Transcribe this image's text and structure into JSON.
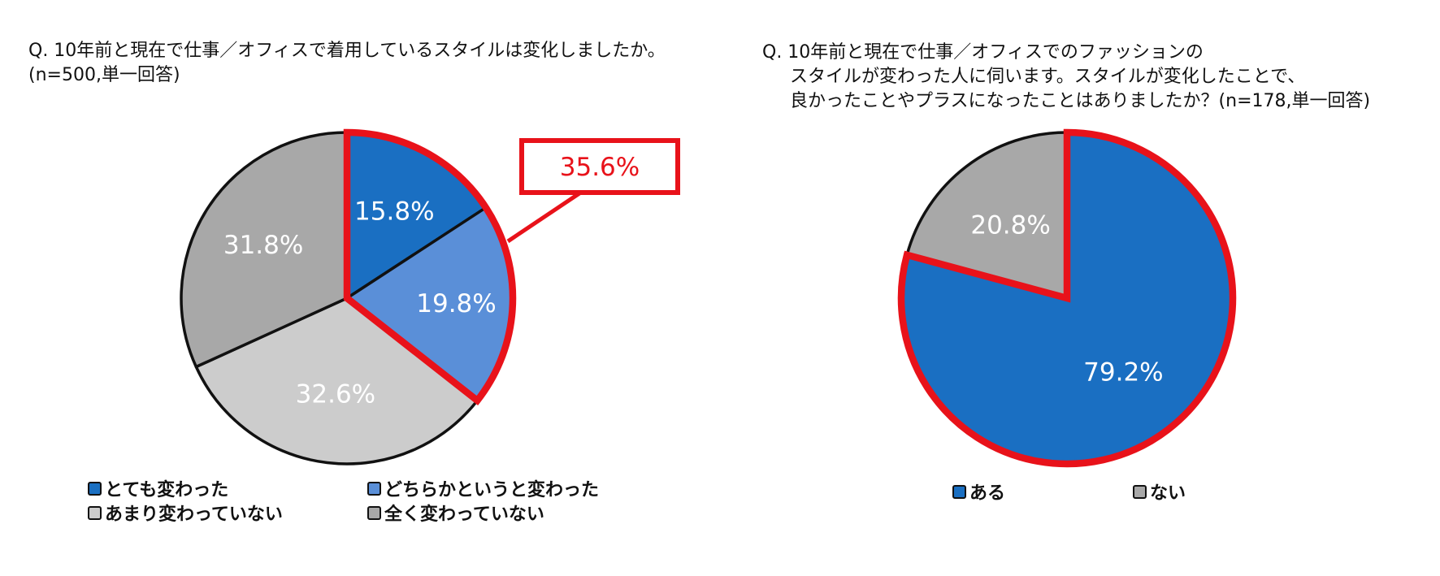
{
  "charts": {
    "left": {
      "question": "Q. 10年前と現在で仕事／オフィスで着用しているスタイルは変化しましたか。",
      "sample": "(n=500,単一回答)",
      "callout": {
        "label": "35.6%",
        "color": "#e8121a"
      }
    },
    "right": {
      "question_lines": [
        "Q. 10年前と現在で仕事／オフィスでのファッションの",
        "スタイルが変わった人に伺います。スタイルが変化したことで、",
        "良かったことやプラスになったことはありましたか？(n=178,単一回答)"
      ]
    }
  },
  "chart_data": [
    {
      "type": "pie",
      "title": "Q. 10年前と現在で仕事／オフィスで着用しているスタイルは変化しましたか。",
      "subtitle": "(n=500,単一回答)",
      "slices": [
        {
          "name": "とても変わった",
          "value": 15.8,
          "label": "15.8%",
          "color": "#1a6fc2"
        },
        {
          "name": "どちらかというと変わった",
          "value": 19.8,
          "label": "19.8%",
          "color": "#5a8fd8"
        },
        {
          "name": "あまり変わっていない",
          "value": 32.6,
          "label": "32.6%",
          "color": "#cccccc"
        },
        {
          "name": "全く変わっていない",
          "value": 31.8,
          "label": "31.8%",
          "color": "#a8a8a8"
        }
      ],
      "highlight": {
        "slices": [
          0,
          1
        ],
        "total_label": "35.6%",
        "color": "#e8121a"
      },
      "legend_position": "bottom"
    },
    {
      "type": "pie",
      "title": "Q. 10年前と現在で仕事／オフィスでのファッションのスタイルが変わった人に伺います。スタイルが変化したことで、良かったことやプラスになったことはありましたか？(n=178,単一回答)",
      "slices": [
        {
          "name": "ある",
          "value": 79.2,
          "label": "79.2%",
          "color": "#1a6fc2"
        },
        {
          "name": "ない",
          "value": 20.8,
          "label": "20.8%",
          "color": "#a8a8a8"
        }
      ],
      "highlight": {
        "slices": [
          0
        ],
        "color": "#e8121a"
      },
      "legend_position": "bottom"
    }
  ]
}
